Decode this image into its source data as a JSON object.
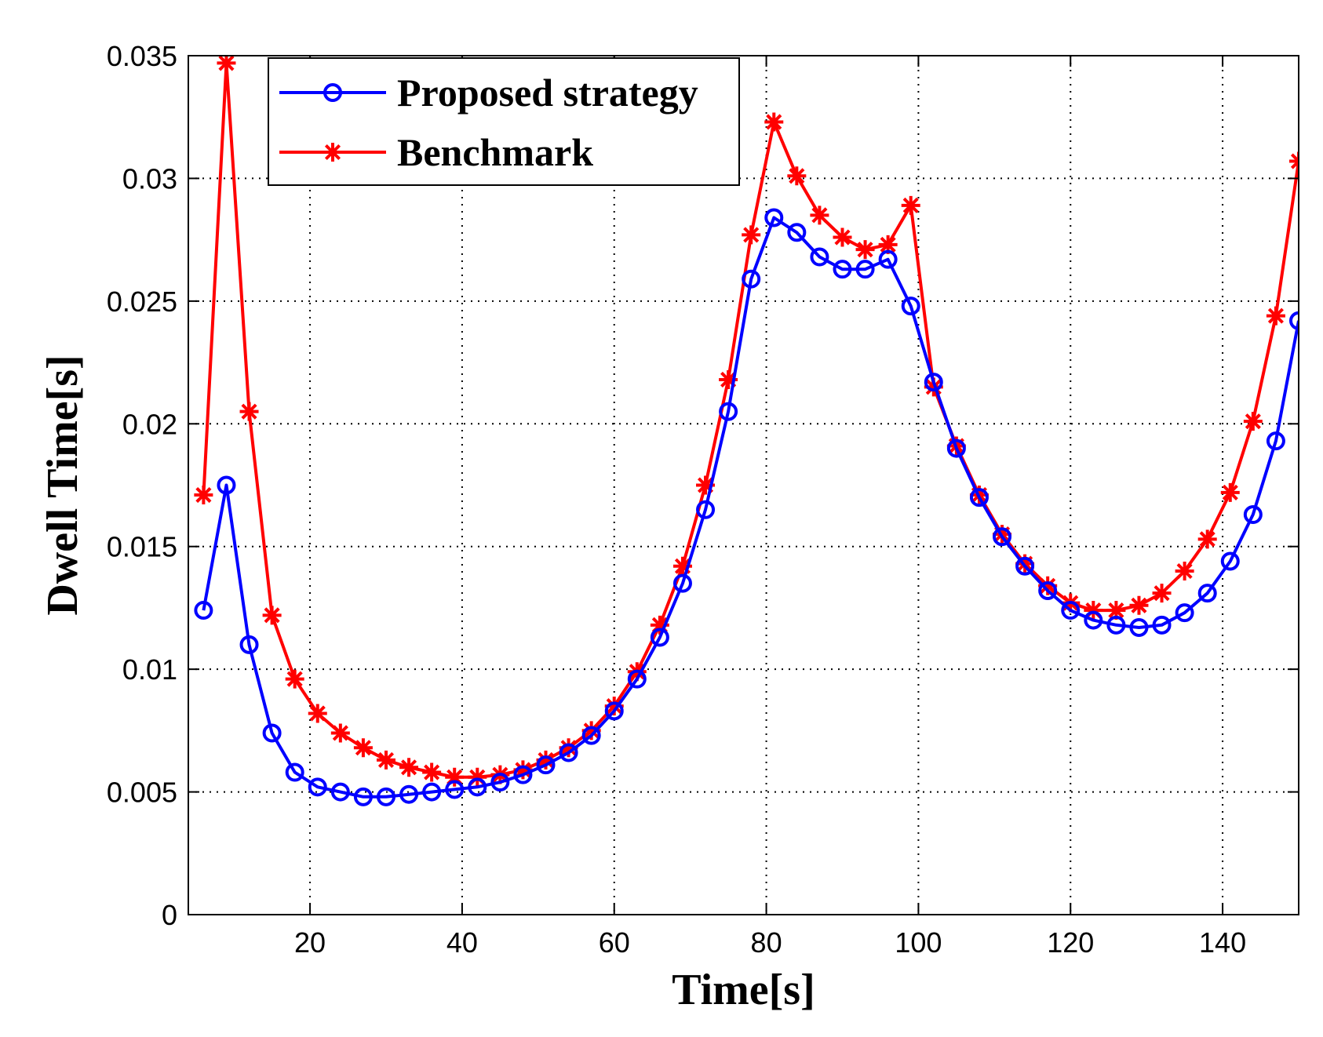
{
  "chart_data": {
    "type": "line",
    "title": "",
    "xlabel": "Time[s]",
    "ylabel": "Dwell Time[s]",
    "xlim": [
      4,
      150
    ],
    "ylim": [
      0,
      0.035
    ],
    "xticks": [
      20,
      40,
      60,
      80,
      100,
      120,
      140
    ],
    "xtick_labels": [
      "20",
      "40",
      "60",
      "80",
      "100",
      "120",
      "140"
    ],
    "yticks": [
      0,
      0.005,
      0.01,
      0.015,
      0.02,
      0.025,
      0.03,
      0.035
    ],
    "ytick_labels": [
      "0",
      "0.005",
      "0.01",
      "0.015",
      "0.02",
      "0.025",
      "0.03",
      "0.035"
    ],
    "grid": true,
    "legend_position": "top-left",
    "x": [
      6,
      9,
      12,
      15,
      18,
      21,
      24,
      27,
      30,
      33,
      36,
      39,
      42,
      45,
      48,
      51,
      54,
      57,
      60,
      63,
      66,
      69,
      72,
      75,
      78,
      81,
      84,
      87,
      90,
      93,
      96,
      99,
      102,
      105,
      108,
      111,
      114,
      117,
      120,
      123,
      126,
      129,
      132,
      135,
      138,
      141,
      144,
      147,
      150
    ],
    "series": [
      {
        "name": "Proposed strategy",
        "color": "#0000ff",
        "marker": "circle",
        "values": [
          0.0124,
          0.0175,
          0.011,
          0.0074,
          0.0058,
          0.0052,
          0.005,
          0.0048,
          0.0048,
          0.0049,
          0.005,
          0.0051,
          0.0052,
          0.0054,
          0.0057,
          0.0061,
          0.0066,
          0.0073,
          0.0083,
          0.0096,
          0.0113,
          0.0135,
          0.0165,
          0.0205,
          0.0259,
          0.0284,
          0.0278,
          0.0268,
          0.0263,
          0.0263,
          0.0267,
          0.0248,
          0.0217,
          0.019,
          0.017,
          0.0154,
          0.0142,
          0.0132,
          0.0124,
          0.012,
          0.0118,
          0.0117,
          0.0118,
          0.0123,
          0.0131,
          0.0144,
          0.0163,
          0.0193,
          0.0242
        ]
      },
      {
        "name": "Benchmark",
        "color": "#ff0000",
        "marker": "star",
        "values": [
          0.0171,
          0.0347,
          0.0205,
          0.0122,
          0.0096,
          0.0082,
          0.0074,
          0.0068,
          0.0063,
          0.006,
          0.0058,
          0.0056,
          0.0056,
          0.0057,
          0.0059,
          0.0063,
          0.0068,
          0.0075,
          0.0085,
          0.0099,
          0.0118,
          0.0142,
          0.0175,
          0.0218,
          0.0277,
          0.0323,
          0.0301,
          0.0285,
          0.0276,
          0.0271,
          0.0273,
          0.0289,
          0.0215,
          0.0191,
          0.0171,
          0.0155,
          0.0143,
          0.0134,
          0.0127,
          0.0124,
          0.0124,
          0.0126,
          0.0131,
          0.014,
          0.0153,
          0.0172,
          0.0201,
          0.0244,
          0.0307
        ]
      }
    ]
  }
}
